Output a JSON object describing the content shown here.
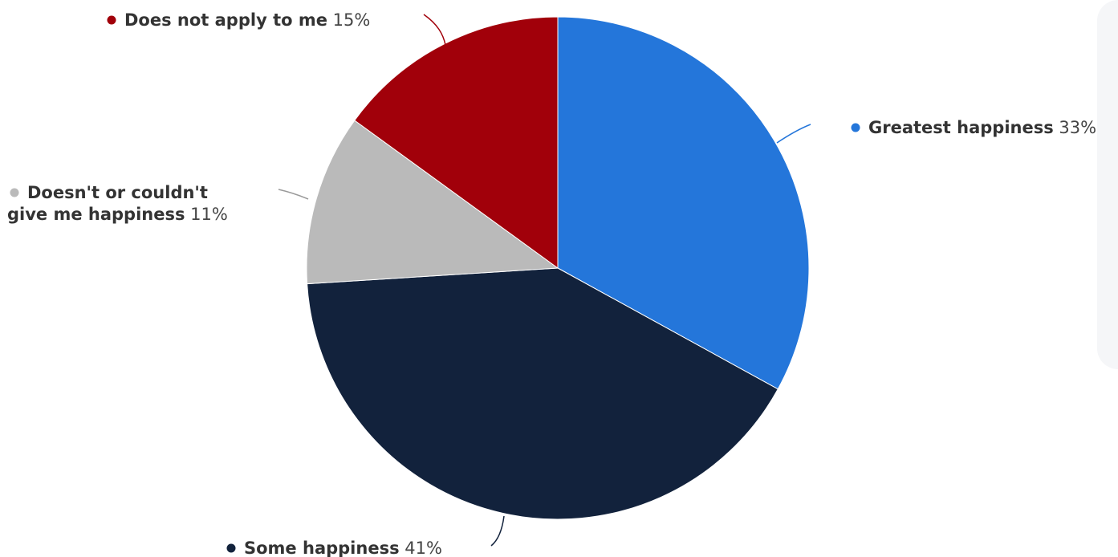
{
  "chart_data": {
    "type": "pie",
    "title": "",
    "unit": "%",
    "slices": [
      {
        "name": "Greatest happiness",
        "name_lines": [
          "Greatest happiness"
        ],
        "value": 33,
        "label": "33%",
        "color": "#2476da"
      },
      {
        "name": "Some happiness",
        "name_lines": [
          "Some happiness"
        ],
        "value": 41,
        "label": "41%",
        "color": "#12223c"
      },
      {
        "name": "Doesn't or couldn't give me happiness",
        "name_lines": [
          "Doesn't or couldn't",
          "give me happiness"
        ],
        "value": 11,
        "label": "11%",
        "color": "#bababa"
      },
      {
        "name": "Does not apply to me",
        "name_lines": [
          "Does not apply to me"
        ],
        "value": 15,
        "label": "15%",
        "color": "#a1000a"
      }
    ],
    "legend": "none",
    "start_angle_deg": 0,
    "direction": "clockwise"
  }
}
